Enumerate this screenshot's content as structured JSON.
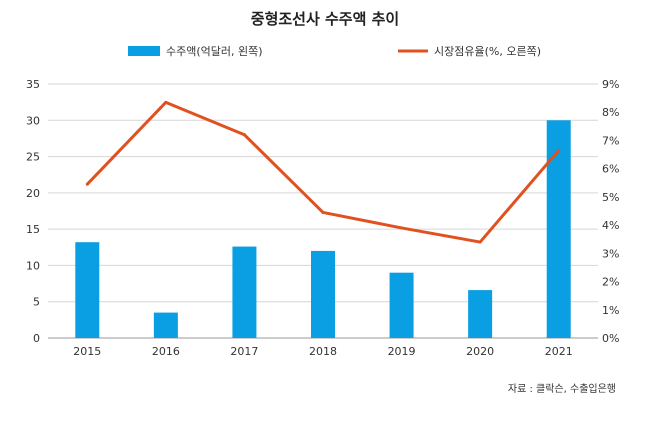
{
  "chart_data": {
    "type": "bar",
    "title": "중형조선사 수주액 추이",
    "categories": [
      "2015",
      "2016",
      "2017",
      "2018",
      "2019",
      "2020",
      "2021"
    ],
    "series": [
      {
        "name": "수주액(억달러, 왼쪽)",
        "kind": "bar",
        "axis": "left",
        "values": [
          13.2,
          3.5,
          12.6,
          12.0,
          9.0,
          6.6,
          30.0
        ],
        "color": "#0a9fe3"
      },
      {
        "name": "시장점유율(%, 오른쪽)",
        "kind": "line",
        "axis": "right",
        "values": [
          5.45,
          8.35,
          7.2,
          4.45,
          3.9,
          3.4,
          6.65
        ],
        "color": "#e0511f"
      }
    ],
    "ylim_left": [
      0,
      35
    ],
    "yticks_left": [
      "0",
      "5",
      "10",
      "15",
      "20",
      "25",
      "30",
      "35"
    ],
    "ylim_right": [
      0,
      9
    ],
    "yticks_right": [
      "0%",
      "1%",
      "2%",
      "3%",
      "4%",
      "5%",
      "6%",
      "7%",
      "8%",
      "9%"
    ],
    "grid": true,
    "legend_position": "top",
    "source": "자료 : 클락슨, 수출입은행"
  }
}
